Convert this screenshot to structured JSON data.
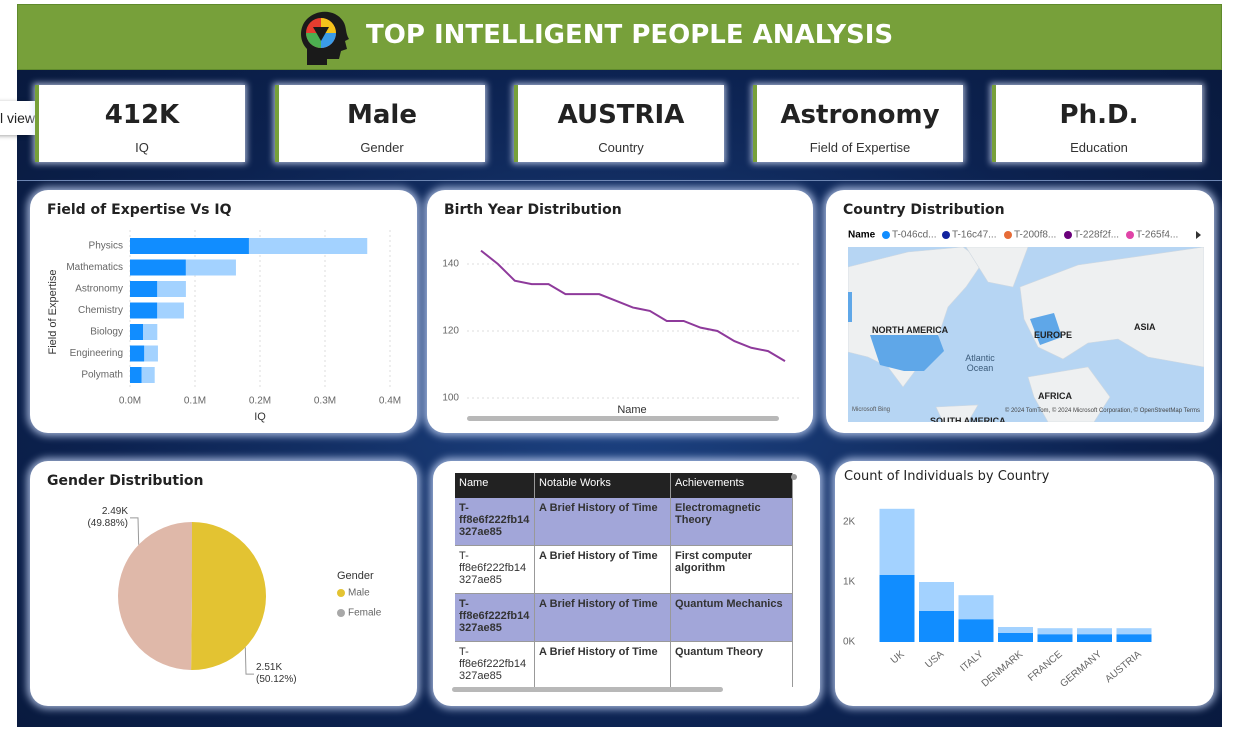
{
  "header": {
    "title": "TOP INTELLIGENT PEOPLE ANALYSIS"
  },
  "tooltip": "l view",
  "cards": [
    {
      "value": "412K",
      "label": "IQ"
    },
    {
      "value": "Male",
      "label": "Gender"
    },
    {
      "value": "AUSTRIA",
      "label": "Country"
    },
    {
      "value": "Astronomy",
      "label": "Field of Expertise"
    },
    {
      "value": "Ph.D.",
      "label": "Education"
    }
  ],
  "chart_data": [
    {
      "type": "bar",
      "orientation": "horizontal",
      "stacked": true,
      "title": "Field of Expertise Vs IQ",
      "x_label": "IQ",
      "y_label": "Field of Expertise",
      "categories": [
        "Physics",
        "Mathematics",
        "Astronomy",
        "Chemistry",
        "Biology",
        "Engineering",
        "Polymath"
      ],
      "series": [
        {
          "color": "#118DFF",
          "values": [
            183000,
            86000,
            42000,
            42000,
            20000,
            22000,
            18000
          ]
        },
        {
          "color": "#A3D2FF",
          "values": [
            182000,
            77000,
            44000,
            41000,
            22000,
            21000,
            20000
          ]
        }
      ],
      "xlim": [
        0,
        410000
      ],
      "xticks": [
        {
          "value": 0,
          "label": "0.0M"
        },
        {
          "value": 100000,
          "label": "0.1M"
        },
        {
          "value": 200000,
          "label": "0.2M"
        },
        {
          "value": 300000,
          "label": "0.3M"
        },
        {
          "value": 400000,
          "label": "0.4M"
        }
      ],
      "grid": true
    },
    {
      "type": "line",
      "title": "Birth Year Distribution",
      "x_label": "Name",
      "x": [
        null,
        null,
        null,
        null,
        null,
        null,
        null,
        null,
        null,
        null,
        null,
        null,
        null,
        null,
        null,
        null,
        null,
        null,
        null
      ],
      "series": [
        {
          "color": "#8E3A9B",
          "values": [
            144,
            140,
            135,
            134,
            134,
            131,
            131,
            131,
            129,
            127,
            126,
            123,
            123,
            121,
            120,
            117,
            115,
            114,
            111
          ]
        }
      ],
      "ylim": [
        98,
        146
      ],
      "yticks": [
        100,
        120,
        140
      ],
      "grid": true
    },
    {
      "type": "pie",
      "title": "Gender Distribution",
      "legend_title": "Gender",
      "categories": [
        "Male",
        "Female"
      ],
      "values": [
        2510,
        2490
      ],
      "value_labels": [
        "2.51K\n(50.12%)",
        "2.49K\n(49.88%)"
      ],
      "colors": [
        "#E3C332",
        "#DFB8A9"
      ],
      "legend_colors": [
        "#E3C332",
        "#A8A8A8"
      ]
    },
    {
      "type": "bar",
      "orientation": "vertical",
      "stacked": true,
      "title": "Count of Individuals by Country",
      "categories": [
        "UK",
        "USA",
        "ITALY",
        "DENMARK",
        "FRANCE",
        "GERMANY",
        "AUSTRIA"
      ],
      "series": [
        {
          "color": "#118DFF",
          "values": [
            1120,
            520,
            380,
            150,
            130,
            130,
            130
          ]
        },
        {
          "color": "#A3D2FF",
          "values": [
            1100,
            480,
            400,
            100,
            100,
            100,
            100
          ]
        }
      ],
      "ylim": [
        0,
        2300
      ],
      "yticks": [
        {
          "value": 0,
          "label": "0K"
        },
        {
          "value": 1000,
          "label": "1K"
        },
        {
          "value": 2000,
          "label": "2K"
        }
      ],
      "grid": false
    }
  ],
  "map": {
    "title": "Country Distribution",
    "legend_title": "Name",
    "legend": [
      {
        "name": "T-046cd...",
        "color": "#118DFF"
      },
      {
        "name": "T-16c47...",
        "color": "#12239E"
      },
      {
        "name": "T-200f8...",
        "color": "#E66C37"
      },
      {
        "name": "T-228f2f...",
        "color": "#6B007B"
      },
      {
        "name": "T-265f4...",
        "color": "#E044A7"
      }
    ],
    "labels": [
      "NORTH AMERICA",
      "EUROPE",
      "ASIA",
      "Atlantic Ocean",
      "AFRICA",
      "SOUTH AMERICA"
    ],
    "brand": "Microsoft Bing",
    "attribution": "© 2024 TomTom, © 2024 Microsoft Corporation, © OpenStreetMap  Terms"
  },
  "table": {
    "columns": [
      "Name",
      "Notable Works",
      "Achievements"
    ],
    "rows": [
      [
        "T-ff8e6f222fb14327ae85",
        "A Brief History of Time",
        "Electromagnetic Theory"
      ],
      [
        "T-ff8e6f222fb14327ae85",
        "A Brief History of Time",
        "First computer algorithm"
      ],
      [
        "T-ff8e6f222fb14327ae85",
        "A Brief History of Time",
        "Quantum Mechanics"
      ],
      [
        "T-ff8e6f222fb14327ae85",
        "A Brief History of Time",
        "Quantum Theory"
      ]
    ]
  }
}
